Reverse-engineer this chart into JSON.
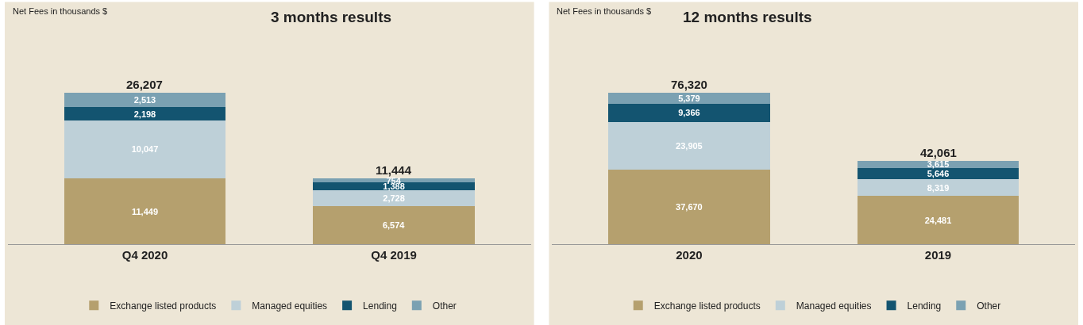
{
  "chart_data": [
    {
      "type": "bar",
      "stacked": true,
      "title": "3 months results",
      "ylabel": "Net Fees in thousands $",
      "categories": [
        "Q4 2020",
        "Q4 2019"
      ],
      "series": [
        {
          "name": "Exchange listed products",
          "color": "#b5a06e",
          "values": [
            11449,
            6574
          ],
          "value_labels": [
            "11,449",
            "6,574"
          ]
        },
        {
          "name": "Managed equities",
          "color": "#bed0d8",
          "values": [
            10047,
            2728
          ],
          "value_labels": [
            "10,047",
            "2,728"
          ]
        },
        {
          "name": "Lending",
          "color": "#135470",
          "values": [
            2198,
            1388
          ],
          "value_labels": [
            "2,198",
            "1,388"
          ]
        },
        {
          "name": "Other",
          "color": "#7ba1b2",
          "values": [
            2513,
            754
          ],
          "value_labels": [
            "2,513",
            "754"
          ]
        }
      ],
      "totals": [
        "26,207",
        "11,444"
      ],
      "legend": "bottom",
      "tick_labels": "x"
    },
    {
      "type": "bar",
      "stacked": true,
      "title": "12 months results",
      "ylabel": "Net Fees in thousands $",
      "categories": [
        "2020",
        "2019"
      ],
      "series": [
        {
          "name": "Exchange listed products",
          "color": "#b5a06e",
          "values": [
            37670,
            24481
          ],
          "value_labels": [
            "37,670",
            "24,481"
          ]
        },
        {
          "name": "Managed equities",
          "color": "#bed0d8",
          "values": [
            23905,
            8319
          ],
          "value_labels": [
            "23,905",
            "8,319"
          ]
        },
        {
          "name": "Lending",
          "color": "#135470",
          "values": [
            9366,
            5646
          ],
          "value_labels": [
            "9,366",
            "5,646"
          ]
        },
        {
          "name": "Other",
          "color": "#7ba1b2",
          "values": [
            5379,
            3615
          ],
          "value_labels": [
            "5,379",
            "3,615"
          ]
        }
      ],
      "totals": [
        "76,320",
        "42,061"
      ],
      "legend": "bottom",
      "tick_labels": "x"
    }
  ]
}
